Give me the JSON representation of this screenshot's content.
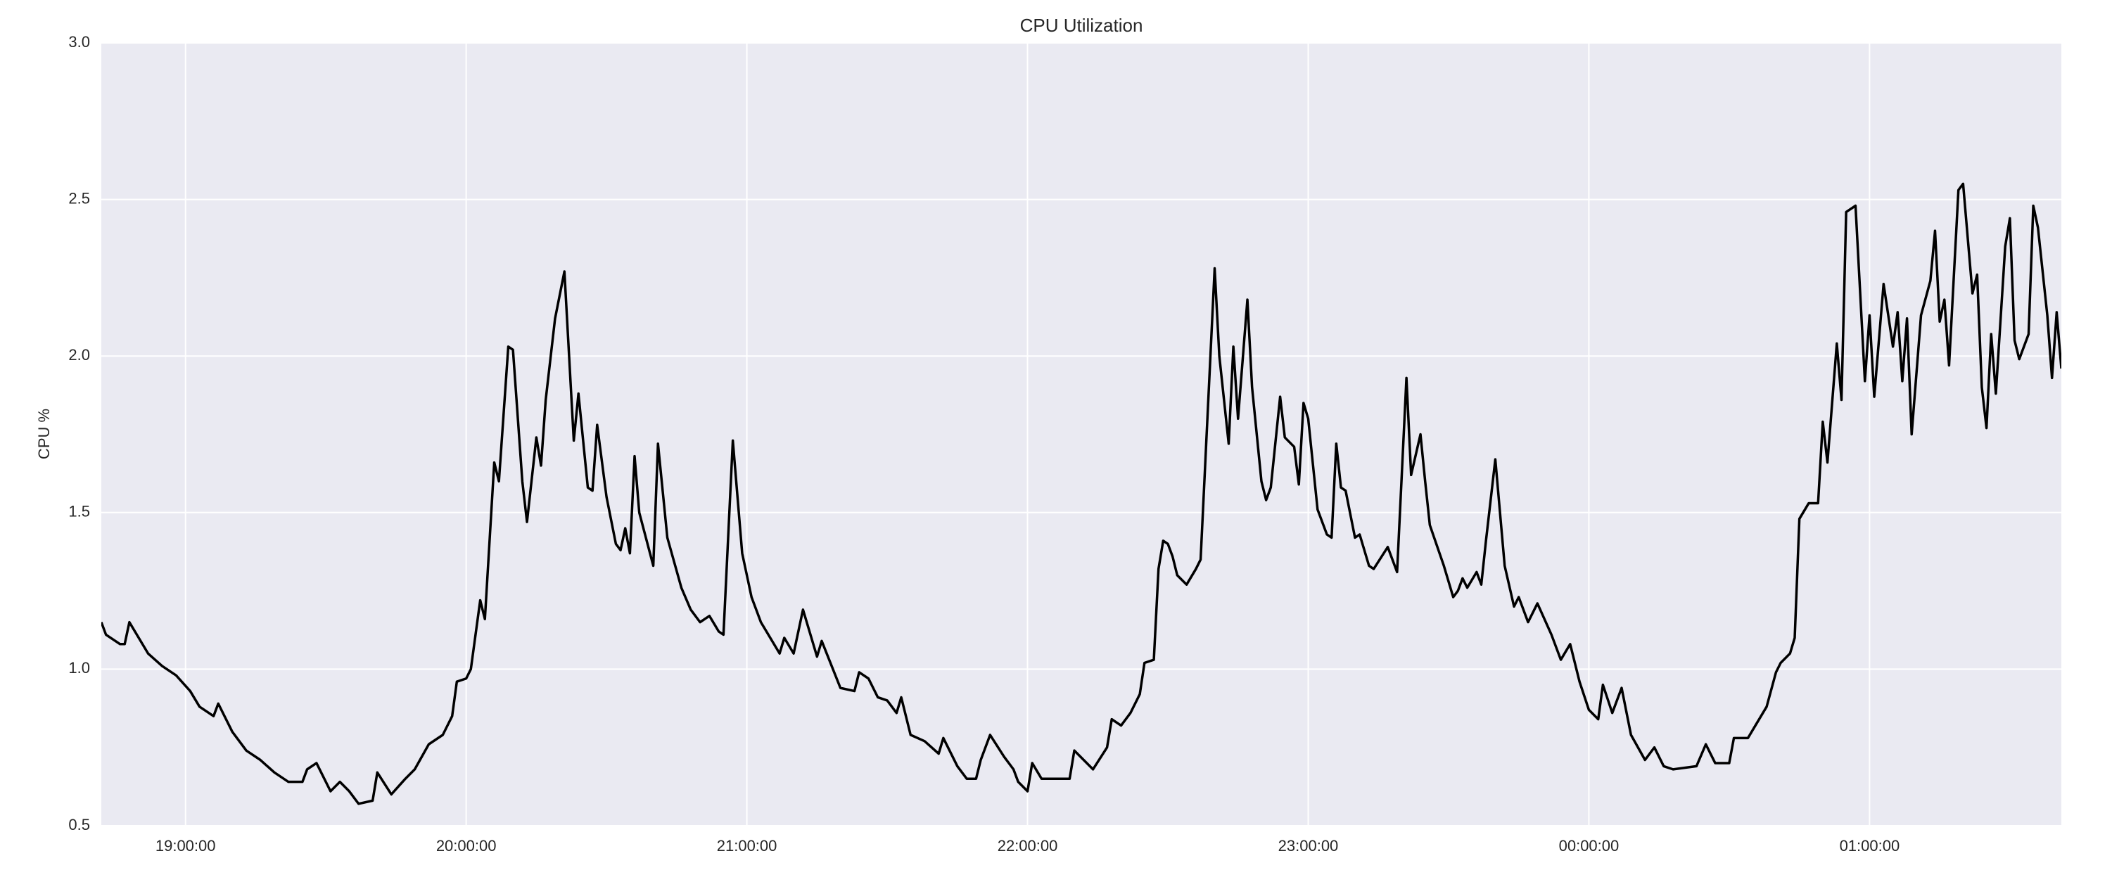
{
  "chart_data": {
    "type": "line",
    "title": "CPU Utilization",
    "y_label": "CPU %",
    "color": "#000000",
    "grid": true,
    "background": "#eaeaf2",
    "xlim": [
      "18:42:00",
      "01:41:00"
    ],
    "xticks": [
      "19:00:00",
      "20:00:00",
      "21:00:00",
      "22:00:00",
      "23:00:00",
      "00:00:00",
      "01:00:00"
    ],
    "ylim": [
      0.5,
      3.0
    ],
    "yticks": [
      0.5,
      {
        "value": 1.0,
        "label": "1.0"
      },
      1.5,
      {
        "value": 2.0,
        "label": "2.0"
      },
      2.5,
      {
        "value": 3.0,
        "label": "3.0"
      }
    ],
    "x": [
      "18:42:00",
      "18:43:00",
      "18:46:00",
      "18:47:00",
      "18:48:00",
      "18:50:00",
      "18:52:00",
      "18:55:00",
      "18:58:00",
      "19:01:00",
      "19:03:00",
      "19:06:00",
      "19:07:00",
      "19:10:00",
      "19:13:00",
      "19:16:00",
      "19:19:00",
      "19:22:00",
      "19:25:00",
      "19:26:00",
      "19:28:00",
      "19:31:00",
      "19:33:00",
      "19:35:00",
      "19:37:00",
      "19:40:00",
      "19:41:00",
      "19:44:00",
      "19:47:00",
      "19:49:00",
      "19:52:00",
      "19:55:00",
      "19:57:00",
      "19:58:00",
      "20:00:00",
      "20:01:00",
      "20:03:00",
      "20:04:00",
      "20:06:00",
      "20:07:00",
      "20:09:00",
      "20:10:00",
      "20:12:00",
      "20:13:00",
      "20:15:00",
      "20:16:00",
      "20:17:00",
      "20:19:00",
      "20:21:00",
      "20:23:00",
      "20:24:00",
      "20:26:00",
      "20:27:00",
      "20:28:00",
      "20:30:00",
      "20:32:00",
      "20:33:00",
      "20:34:00",
      "20:35:00",
      "20:36:00",
      "20:37:00",
      "20:40:00",
      "20:41:00",
      "20:43:00",
      "20:46:00",
      "20:48:00",
      "20:50:00",
      "20:52:00",
      "20:54:00",
      "20:55:00",
      "20:57:00",
      "20:59:00",
      "21:01:00",
      "21:03:00",
      "21:07:00",
      "21:08:00",
      "21:10:00",
      "21:12:00",
      "21:15:00",
      "21:16:00",
      "21:20:00",
      "21:23:00",
      "21:24:00",
      "21:26:00",
      "21:28:00",
      "21:30:00",
      "21:32:00",
      "21:33:00",
      "21:35:00",
      "21:38:00",
      "21:41:00",
      "21:42:00",
      "21:45:00",
      "21:47:00",
      "21:49:00",
      "21:50:00",
      "21:52:00",
      "21:55:00",
      "21:57:00",
      "21:58:00",
      "22:00:00",
      "22:01:00",
      "22:03:00",
      "22:06:00",
      "22:09:00",
      "22:10:00",
      "22:12:00",
      "22:14:00",
      "22:17:00",
      "22:18:00",
      "22:20:00",
      "22:22:00",
      "22:24:00",
      "22:25:00",
      "22:27:00",
      "22:28:00",
      "22:29:00",
      "22:30:00",
      "22:31:00",
      "22:32:00",
      "22:34:00",
      "22:36:00",
      "22:37:00",
      "22:40:00",
      "22:41:00",
      "22:43:00",
      "22:44:00",
      "22:45:00",
      "22:47:00",
      "22:48:00",
      "22:50:00",
      "22:51:00",
      "22:52:00",
      "22:54:00",
      "22:55:00",
      "22:57:00",
      "22:58:00",
      "22:59:00",
      "23:00:00",
      "23:02:00",
      "23:04:00",
      "23:05:00",
      "23:06:00",
      "23:07:00",
      "23:08:00",
      "23:10:00",
      "23:11:00",
      "23:13:00",
      "23:14:00",
      "23:17:00",
      "23:19:00",
      "23:21:00",
      "23:22:00",
      "23:24:00",
      "23:25:00",
      "23:26:00",
      "23:29:00",
      "23:31:00",
      "23:32:00",
      "23:33:00",
      "23:34:00",
      "23:36:00",
      "23:37:00",
      "23:38:00",
      "23:40:00",
      "23:42:00",
      "23:44:00",
      "23:45:00",
      "23:47:00",
      "23:49:00",
      "23:52:00",
      "23:54:00",
      "23:56:00",
      "23:58:00",
      "00:00:00",
      "00:02:00",
      "00:03:00",
      "00:05:00",
      "00:07:00",
      "00:09:00",
      "00:12:00",
      "00:14:00",
      "00:16:00",
      "00:18:00",
      "00:23:00",
      "00:25:00",
      "00:27:00",
      "00:30:00",
      "00:31:00",
      "00:34:00",
      "00:36:00",
      "00:38:00",
      "00:40:00",
      "00:41:00",
      "00:43:00",
      "00:44:00",
      "00:45:00",
      "00:47:00",
      "00:49:00",
      "00:50:00",
      "00:51:00",
      "00:53:00",
      "00:54:00",
      "00:55:00",
      "00:57:00",
      "00:59:00",
      "01:00:00",
      "01:01:00",
      "01:03:00",
      "01:05:00",
      "01:06:00",
      "01:07:00",
      "01:08:00",
      "01:09:00",
      "01:11:00",
      "01:13:00",
      "01:14:00",
      "01:15:00",
      "01:16:00",
      "01:17:00",
      "01:19:00",
      "01:20:00",
      "01:22:00",
      "01:23:00",
      "01:24:00",
      "01:25:00",
      "01:26:00",
      "01:27:00",
      "01:29:00",
      "01:30:00",
      "01:31:00",
      "01:32:00",
      "01:34:00",
      "01:35:00",
      "01:36:00",
      "01:38:00",
      "01:39:00",
      "01:40:00",
      "01:41:00"
    ],
    "values": [
      1.15,
      1.11,
      1.08,
      1.08,
      1.15,
      1.1,
      1.05,
      1.01,
      0.98,
      0.93,
      0.88,
      0.85,
      0.89,
      0.8,
      0.74,
      0.71,
      0.67,
      0.64,
      0.64,
      0.68,
      0.7,
      0.61,
      0.64,
      0.61,
      0.57,
      0.58,
      0.67,
      0.6,
      0.65,
      0.68,
      0.76,
      0.79,
      0.85,
      0.96,
      0.97,
      1.0,
      1.22,
      1.16,
      1.66,
      1.6,
      2.03,
      2.02,
      1.6,
      1.47,
      1.74,
      1.65,
      1.86,
      2.12,
      2.27,
      1.73,
      1.88,
      1.58,
      1.57,
      1.78,
      1.55,
      1.4,
      1.38,
      1.45,
      1.37,
      1.68,
      1.5,
      1.33,
      1.72,
      1.42,
      1.26,
      1.19,
      1.15,
      1.17,
      1.12,
      1.11,
      1.73,
      1.37,
      1.23,
      1.15,
      1.05,
      1.1,
      1.05,
      1.19,
      1.04,
      1.09,
      0.94,
      0.93,
      0.99,
      0.97,
      0.91,
      0.9,
      0.86,
      0.91,
      0.79,
      0.77,
      0.73,
      0.78,
      0.69,
      0.65,
      0.65,
      0.71,
      0.79,
      0.72,
      0.68,
      0.64,
      0.61,
      0.7,
      0.65,
      0.65,
      0.65,
      0.74,
      0.71,
      0.68,
      0.75,
      0.84,
      0.82,
      0.86,
      0.92,
      1.02,
      1.03,
      1.32,
      1.41,
      1.4,
      1.36,
      1.3,
      1.27,
      1.32,
      1.35,
      2.28,
      2.0,
      1.72,
      2.03,
      1.8,
      2.18,
      1.9,
      1.6,
      1.54,
      1.58,
      1.87,
      1.74,
      1.71,
      1.59,
      1.85,
      1.8,
      1.51,
      1.43,
      1.42,
      1.72,
      1.58,
      1.57,
      1.42,
      1.43,
      1.33,
      1.32,
      1.39,
      1.31,
      1.93,
      1.62,
      1.75,
      1.6,
      1.46,
      1.33,
      1.23,
      1.25,
      1.29,
      1.26,
      1.31,
      1.27,
      1.41,
      1.67,
      1.33,
      1.2,
      1.23,
      1.15,
      1.21,
      1.11,
      1.03,
      1.08,
      0.96,
      0.87,
      0.84,
      0.95,
      0.86,
      0.94,
      0.79,
      0.71,
      0.75,
      0.69,
      0.68,
      0.69,
      0.76,
      0.7,
      0.7,
      0.78,
      0.78,
      0.83,
      0.88,
      0.99,
      1.02,
      1.05,
      1.1,
      1.48,
      1.53,
      1.53,
      1.79,
      1.66,
      2.04,
      1.86,
      2.46,
      2.48,
      1.92,
      2.13,
      1.87,
      2.23,
      2.03,
      2.14,
      1.92,
      2.12,
      1.75,
      2.13,
      2.24,
      2.4,
      2.11,
      2.18,
      1.97,
      2.53,
      2.55,
      2.2,
      2.26,
      1.9,
      1.77,
      2.07,
      1.88,
      2.35,
      2.44,
      2.05,
      1.99,
      2.07,
      2.48,
      2.41,
      2.13,
      1.93,
      2.14,
      1.96
    ]
  }
}
